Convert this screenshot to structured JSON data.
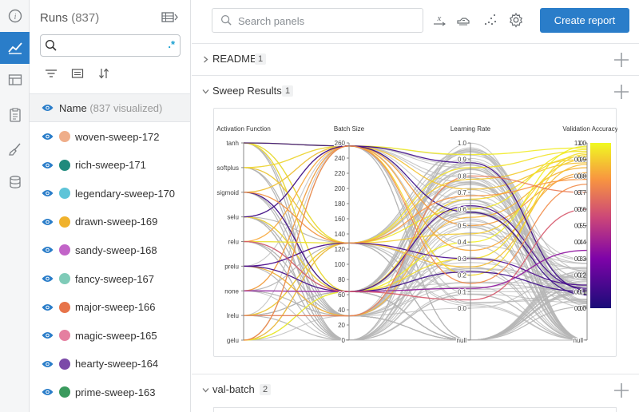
{
  "rail": {
    "icons": [
      "info-icon",
      "line-chart-icon",
      "table-icon",
      "report-icon",
      "sweep-brush-icon",
      "database-icon"
    ],
    "active": "line-chart-icon"
  },
  "runs_panel": {
    "title": "Runs",
    "count": "(837)",
    "search_placeholder": "",
    "regex_label": ".*",
    "header_label": "Name",
    "header_visible": "(837 visualized)",
    "runs": [
      {
        "name": "woven-sweep-172",
        "color": "#efae8a"
      },
      {
        "name": "rich-sweep-171",
        "color": "#1f8a7c"
      },
      {
        "name": "legendary-sweep-170",
        "color": "#5ec4d8"
      },
      {
        "name": "drawn-sweep-169",
        "color": "#f0b22c"
      },
      {
        "name": "sandy-sweep-168",
        "color": "#c264c8"
      },
      {
        "name": "fancy-sweep-167",
        "color": "#7fcbb8"
      },
      {
        "name": "major-sweep-166",
        "color": "#e7744a"
      },
      {
        "name": "magic-sweep-165",
        "color": "#e57fa0"
      },
      {
        "name": "hearty-sweep-164",
        "color": "#7b4aa8"
      },
      {
        "name": "prime-sweep-163",
        "color": "#3a9a5d"
      }
    ]
  },
  "toolbar": {
    "search_placeholder": "Search panels",
    "create_report": "Create report",
    "colors": {
      "accent": "#2a7dc9"
    }
  },
  "sections": [
    {
      "title": "README",
      "count": "1",
      "expanded": false
    },
    {
      "title": "Sweep Results",
      "count": "1",
      "expanded": true
    },
    {
      "title": "val-batch",
      "count": "2",
      "expanded": true
    }
  ],
  "chart_data": {
    "type": "parallel-coordinates",
    "axes": [
      {
        "name": "Activation Function",
        "kind": "categorical",
        "ticks": [
          "tanh",
          "softplus",
          "sigmoid",
          "selu",
          "relu",
          "prelu",
          "none",
          "lrelu",
          "gelu"
        ]
      },
      {
        "name": "Batch Size",
        "kind": "numeric",
        "ticks": [
          "260",
          "240",
          "220",
          "200",
          "180",
          "160",
          "140",
          "120",
          "100",
          "80",
          "60",
          "40",
          "20",
          "0"
        ],
        "range": [
          0,
          260
        ]
      },
      {
        "name": "Learning Rate",
        "kind": "numeric",
        "ticks": [
          "1.0",
          "0.9",
          "0.8",
          "0.7",
          "0.6",
          "0.5",
          "0.4",
          "0.3",
          "0.2",
          "0.1",
          "0.0",
          "null"
        ],
        "range": [
          0,
          1
        ]
      },
      {
        "name": "Validation Accuracy",
        "kind": "numeric",
        "ticks": [
          "1.0",
          "0.9",
          "0.8",
          "0.7",
          "0.6",
          "0.5",
          "0.4",
          "0.3",
          "0.2",
          "0.1",
          "0.0",
          "null"
        ],
        "range": [
          0,
          1
        ]
      }
    ],
    "colorbar": {
      "ticks": [
        "1.0",
        "0.9",
        "0.8",
        "0.7",
        "0.6",
        "0.5",
        "0.4",
        "0.3",
        "0.2",
        "0.1",
        "0.0"
      ],
      "range": [
        0,
        1
      ],
      "colors": [
        "#1b0c78",
        "#7e03a8",
        "#cc4778",
        "#f89540",
        "#f0f921"
      ]
    },
    "lines": [
      {
        "act": "tanh",
        "bs": 256,
        "lr": 0.93,
        "va": 0.97
      },
      {
        "act": "tanh",
        "bs": 128,
        "lr": 0.85,
        "va": 0.95
      },
      {
        "act": "softplus",
        "bs": 128,
        "lr": 0.78,
        "va": 0.9
      },
      {
        "act": "sigmoid",
        "bs": 256,
        "lr": 0.72,
        "va": 0.88
      },
      {
        "act": "selu",
        "bs": 64,
        "lr": 0.66,
        "va": 0.92
      },
      {
        "act": "relu",
        "bs": 128,
        "lr": 0.6,
        "va": 0.96
      },
      {
        "act": "prelu",
        "bs": 32,
        "lr": 0.55,
        "va": 0.85
      },
      {
        "act": "none",
        "bs": 256,
        "lr": 0.5,
        "va": 0.8
      },
      {
        "act": "lrelu",
        "bs": 128,
        "lr": 0.45,
        "va": 0.9
      },
      {
        "act": "gelu",
        "bs": 64,
        "lr": 0.4,
        "va": 0.98
      },
      {
        "act": "relu",
        "bs": 256,
        "lr": 0.35,
        "va": 0.82
      },
      {
        "act": "tanh",
        "bs": 64,
        "lr": 0.3,
        "va": 0.94
      },
      {
        "act": "gelu",
        "bs": 128,
        "lr": 0.25,
        "va": 0.87
      },
      {
        "act": "softplus",
        "bs": 256,
        "lr": 0.2,
        "va": 0.93
      },
      {
        "act": "prelu",
        "bs": 64,
        "lr": 0.62,
        "va": 0.12
      },
      {
        "act": "sigmoid",
        "bs": 64,
        "lr": 0.22,
        "va": 0.1
      },
      {
        "act": "prelu",
        "bs": 128,
        "lr": 0.3,
        "va": 0.14
      },
      {
        "act": "tanh",
        "bs": 256,
        "lr": 0.58,
        "va": 0.08
      },
      {
        "act": "selu",
        "bs": 256,
        "lr": 0.88,
        "va": 0.11
      },
      {
        "act": "none",
        "bs": 64,
        "lr": 0.12,
        "va": 0.35
      },
      {
        "act": "relu",
        "bs": 64,
        "lr": 0.05,
        "va": 0.6
      },
      {
        "act": "lrelu",
        "bs": 32,
        "lr": 0.8,
        "va": 0.7
      },
      {
        "act": "gelu",
        "bs": 256,
        "lr": 0.15,
        "va": 0.75
      },
      {
        "act": "sigmoid",
        "bs": 128,
        "lr": 0.68,
        "va": 0.78
      }
    ]
  }
}
